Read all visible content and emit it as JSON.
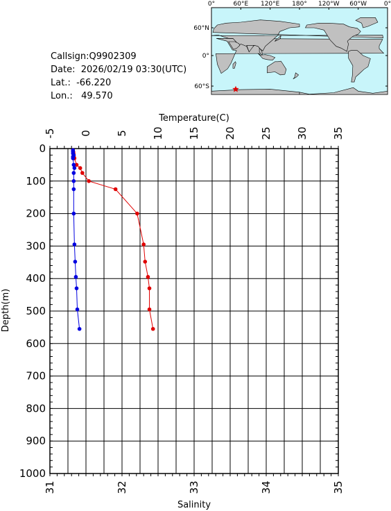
{
  "info": {
    "callsign": "Callsign:Q9902309",
    "date": "Date:  2026/02/19 03:30(UTC)",
    "lat": "Lat.:  -66.220",
    "lon": "Lon.:   49.570"
  },
  "map": {
    "top_labels": [
      "0°",
      "60°E",
      "120°E",
      "180°",
      "120°W",
      "60°W",
      "0°"
    ],
    "side_labels": [
      "60°N",
      "0°",
      "60°S"
    ],
    "marker": {
      "lon": 49.57,
      "lat": -66.22,
      "color": "#e00000"
    },
    "ocean_color": "#c8f5fa",
    "land_color": "#c0c0c0"
  },
  "chart_data": {
    "type": "line",
    "ylabel": "Depth(m)",
    "ylim": [
      0,
      1000
    ],
    "yticks": [
      0,
      100,
      200,
      300,
      400,
      500,
      600,
      700,
      800,
      900,
      1000
    ],
    "temperature_axis": {
      "label": "Temperature(C)",
      "range": [
        -5,
        35
      ],
      "ticks": [
        "-5",
        "0",
        "5",
        "10",
        "15",
        "20",
        "25",
        "30",
        "35"
      ]
    },
    "salinity_axis": {
      "label": "Salinity",
      "range": [
        31,
        35
      ],
      "ticks": [
        "31",
        "32",
        "33",
        "34",
        "35"
      ]
    },
    "grid": true,
    "series": [
      {
        "color": "#e00000",
        "axis": "temperature",
        "depth": [
          5,
          10,
          15,
          20,
          25,
          30,
          50,
          60,
          75,
          100,
          125,
          200,
          295,
          348,
          395,
          430,
          495,
          555
        ],
        "values": [
          -1.8,
          -1.75,
          -1.72,
          -1.7,
          -1.68,
          -1.6,
          -1.3,
          -0.8,
          -0.5,
          0.4,
          4.1,
          7.1,
          8.0,
          8.2,
          8.6,
          8.8,
          8.8,
          9.3
        ]
      },
      {
        "color": "#0000e0",
        "axis": "salinity",
        "depth": [
          5,
          10,
          15,
          20,
          25,
          30,
          50,
          60,
          75,
          100,
          125,
          200,
          295,
          348,
          395,
          430,
          495,
          555
        ],
        "values": [
          31.32,
          31.32,
          31.32,
          31.33,
          31.32,
          31.32,
          31.33,
          31.34,
          31.33,
          31.33,
          31.33,
          31.33,
          31.34,
          31.35,
          31.36,
          31.37,
          31.38,
          31.41
        ]
      }
    ]
  }
}
